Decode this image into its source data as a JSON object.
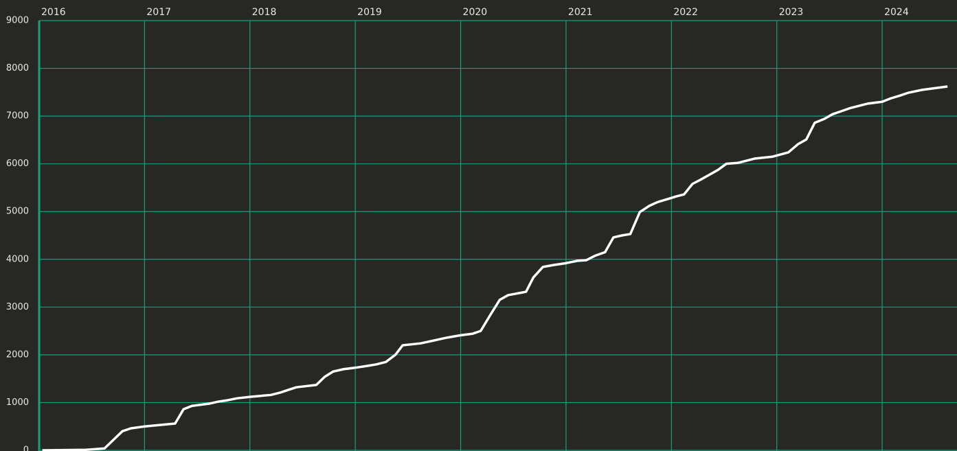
{
  "chart_data": {
    "type": "line",
    "x": [
      2016.03,
      2016.44,
      2016.62,
      2016.79,
      2016.87,
      2017.0,
      2017.29,
      2017.37,
      2017.45,
      2017.62,
      2017.7,
      2017.79,
      2017.88,
      2018.0,
      2018.2,
      2018.29,
      2018.37,
      2018.44,
      2018.63,
      2018.71,
      2018.79,
      2018.89,
      2019.0,
      2019.12,
      2019.2,
      2019.29,
      2019.38,
      2019.45,
      2019.62,
      2019.87,
      2020.0,
      2020.11,
      2020.19,
      2020.28,
      2020.37,
      2020.45,
      2020.62,
      2020.69,
      2020.78,
      2020.88,
      2021.0,
      2021.11,
      2021.19,
      2021.28,
      2021.37,
      2021.45,
      2021.53,
      2021.61,
      2021.7,
      2021.79,
      2021.87,
      2021.96,
      2022.05,
      2022.12,
      2022.2,
      2022.27,
      2022.44,
      2022.52,
      2022.63,
      2022.79,
      2022.96,
      2023.11,
      2023.2,
      2023.28,
      2023.36,
      2023.45,
      2023.53,
      2023.61,
      2023.7,
      2023.86,
      2024.0,
      2024.08,
      2024.17,
      2024.25,
      2024.38,
      2024.62
    ],
    "series": [
      {
        "color": "#ffffff",
        "values": [
          0,
          10,
          40,
          400,
          460,
          500,
          560,
          860,
          930,
          980,
          1020,
          1050,
          1090,
          1120,
          1160,
          1210,
          1270,
          1320,
          1370,
          1540,
          1650,
          1700,
          1730,
          1770,
          1800,
          1850,
          2000,
          2200,
          2240,
          2360,
          2410,
          2440,
          2500,
          2830,
          3150,
          3250,
          3320,
          3620,
          3840,
          3880,
          3920,
          3970,
          3980,
          4080,
          4150,
          4460,
          4500,
          4530,
          4990,
          5120,
          5200,
          5260,
          5320,
          5360,
          5580,
          5660,
          5870,
          6000,
          6020,
          6110,
          6150,
          6240,
          6410,
          6510,
          6860,
          6940,
          7040,
          7100,
          7170,
          7260,
          7300,
          7370,
          7430,
          7490,
          7550,
          7620
        ]
      }
    ],
    "xlim": [
      2016,
      2024.71
    ],
    "xticks": [
      2016,
      2017,
      2018,
      2019,
      2020,
      2021,
      2022,
      2023,
      2024
    ],
    "ylim": [
      0,
      9000
    ],
    "yticks": [
      0,
      1000,
      2000,
      3000,
      4000,
      5000,
      6000,
      7000,
      8000,
      9000
    ],
    "grid": true,
    "grid_color": "#17a07c"
  }
}
